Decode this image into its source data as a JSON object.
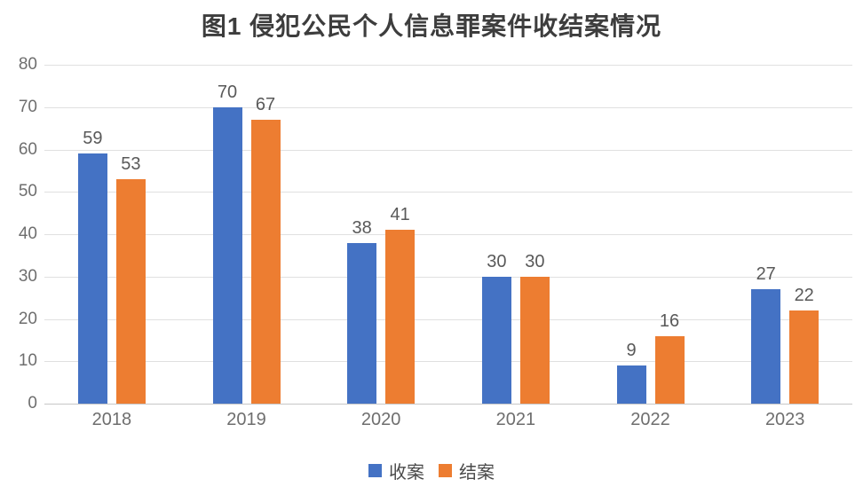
{
  "chart_data": {
    "type": "bar",
    "title": "图1 侵犯公民个人信息罪案件收结案情况",
    "categories": [
      "2018",
      "2019",
      "2020",
      "2021",
      "2022",
      "2023"
    ],
    "series": [
      {
        "name": "收案",
        "color": "#4472C4",
        "values": [
          59,
          70,
          38,
          30,
          9,
          27
        ]
      },
      {
        "name": "结案",
        "color": "#ED7D31",
        "values": [
          53,
          67,
          41,
          30,
          16,
          22
        ]
      }
    ],
    "xlabel": "",
    "ylabel": "",
    "ylim": [
      0,
      80
    ],
    "ytick_step": 10,
    "yticks": [
      0,
      10,
      20,
      30,
      40,
      50,
      60,
      70,
      80
    ],
    "grid": true,
    "legend_position": "bottom"
  },
  "colors": {
    "gridline": "#e0e0e0",
    "axisline": "#c6c6c6",
    "tick_label": "#6e6e6e",
    "value_label": "#595959",
    "title": "#3d3d3d",
    "background": "#ffffff"
  }
}
